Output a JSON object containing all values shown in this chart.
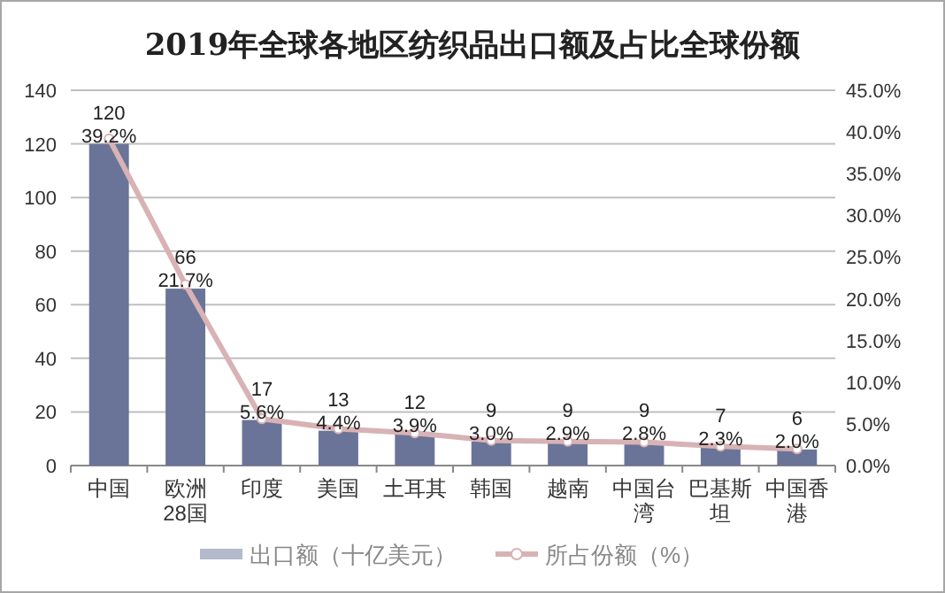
{
  "chart_data": {
    "type": "bar",
    "title": "2019年全球各地区纺织品出口额及占比全球份额",
    "categories": [
      "中国",
      "欧洲28国",
      "印度",
      "美国",
      "土耳其",
      "韩国",
      "越南",
      "中国台湾",
      "巴基斯坦",
      "中国香港"
    ],
    "series": [
      {
        "name": "出口额（十亿美元）",
        "color": "#6a7499",
        "values": [
          120,
          66,
          17,
          13,
          12,
          9,
          9,
          9,
          7,
          6
        ],
        "value_labels": [
          "120",
          "66",
          "17",
          "13",
          "12",
          "9",
          "9",
          "9",
          "7",
          "6"
        ]
      },
      {
        "name": "所占份额（%）",
        "type": "line",
        "axis": "y2",
        "color": "#d8b2b4",
        "marker": "circle",
        "values": [
          39.2,
          21.7,
          5.6,
          4.4,
          3.9,
          3.0,
          2.9,
          2.8,
          2.3,
          2.0
        ],
        "value_labels": [
          "39.2%",
          "21.7%",
          "5.6%",
          "4.4%",
          "3.9%",
          "3.0%",
          "2.9%",
          "2.8%",
          "2.3%",
          "2.0%"
        ]
      }
    ],
    "ylim": [
      0,
      140
    ],
    "yticks": [
      0,
      20,
      40,
      60,
      80,
      100,
      120,
      140
    ],
    "y2lim": [
      0,
      45
    ],
    "y2ticks": [
      {
        "value": 0,
        "label": "0.0%"
      },
      {
        "value": 5,
        "label": "5.0%"
      },
      {
        "value": 10,
        "label": "10.0%"
      },
      {
        "value": 15,
        "label": "15.0%"
      },
      {
        "value": 20,
        "label": "20.0%"
      },
      {
        "value": 25,
        "label": "25.0%"
      },
      {
        "value": 30,
        "label": "30.0%"
      },
      {
        "value": 35,
        "label": "35.0%"
      },
      {
        "value": 40,
        "label": "40.0%"
      },
      {
        "value": 45,
        "label": "45.0%"
      }
    ],
    "grid": "y",
    "legend": "bottom"
  }
}
